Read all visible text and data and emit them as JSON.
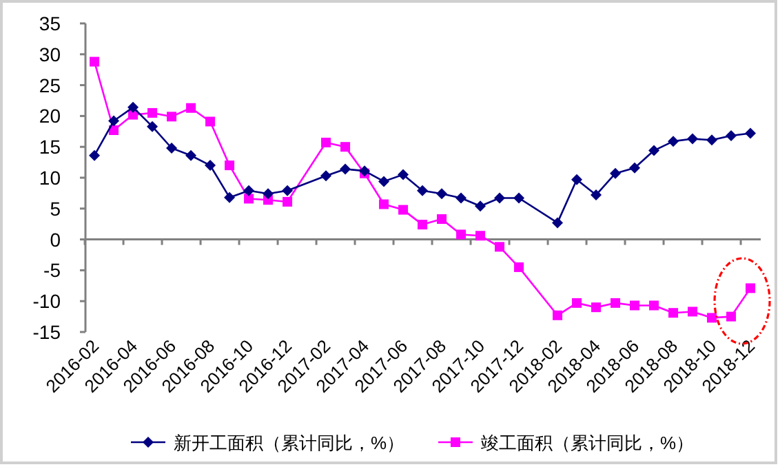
{
  "chart_data": {
    "type": "line",
    "x": [
      "2016-02",
      "2016-03",
      "2016-04",
      "2016-05",
      "2016-06",
      "2016-07",
      "2016-08",
      "2016-09",
      "2016-10",
      "2016-11",
      "2016-12",
      "2017-02",
      "2017-03",
      "2017-04",
      "2017-05",
      "2017-06",
      "2017-07",
      "2017-08",
      "2017-09",
      "2017-10",
      "2017-11",
      "2017-12",
      "2018-02",
      "2018-03",
      "2018-04",
      "2018-05",
      "2018-06",
      "2018-07",
      "2018-08",
      "2018-09",
      "2018-10",
      "2018-11",
      "2018-12"
    ],
    "series": [
      {
        "name": "新开工面积（累计同比，%）",
        "color": "#000080",
        "marker": "diamond",
        "values": [
          13.6,
          19.2,
          21.4,
          18.3,
          14.8,
          13.6,
          12.0,
          6.8,
          7.9,
          7.4,
          7.9,
          10.3,
          11.4,
          11.1,
          9.4,
          10.5,
          7.9,
          7.4,
          6.7,
          5.4,
          6.7,
          6.7,
          2.7,
          9.7,
          7.2,
          10.7,
          11.6,
          14.4,
          15.9,
          16.3,
          16.1,
          16.8,
          17.2
        ]
      },
      {
        "name": "竣工面积（累计同比，%）",
        "color": "#ff00ff",
        "marker": "square",
        "values": [
          28.8,
          17.7,
          20.2,
          20.5,
          19.9,
          21.3,
          19.1,
          12.0,
          6.6,
          6.4,
          6.1,
          15.7,
          15.0,
          10.7,
          5.7,
          4.8,
          2.4,
          3.3,
          0.8,
          0.6,
          -1.2,
          -4.5,
          -12.3,
          -10.3,
          -11.0,
          -10.3,
          -10.7,
          -10.7,
          -11.9,
          -11.7,
          -12.7,
          -12.5,
          -7.9
        ]
      }
    ],
    "xlim": [
      "2016-01-17",
      "2018-12-17"
    ],
    "xticks": [
      "2016-02",
      "2016-04",
      "2016-06",
      "2016-08",
      "2016-10",
      "2016-12",
      "2017-02",
      "2017-04",
      "2017-06",
      "2017-08",
      "2017-10",
      "2017-12",
      "2018-02",
      "2018-04",
      "2018-06",
      "2018-08",
      "2018-10",
      "2018-12"
    ],
    "ylim": [
      -15,
      35
    ],
    "yticks": [
      -15,
      -10,
      -5,
      0,
      5,
      10,
      15,
      20,
      25,
      30,
      35
    ],
    "legend": "bottom"
  }
}
